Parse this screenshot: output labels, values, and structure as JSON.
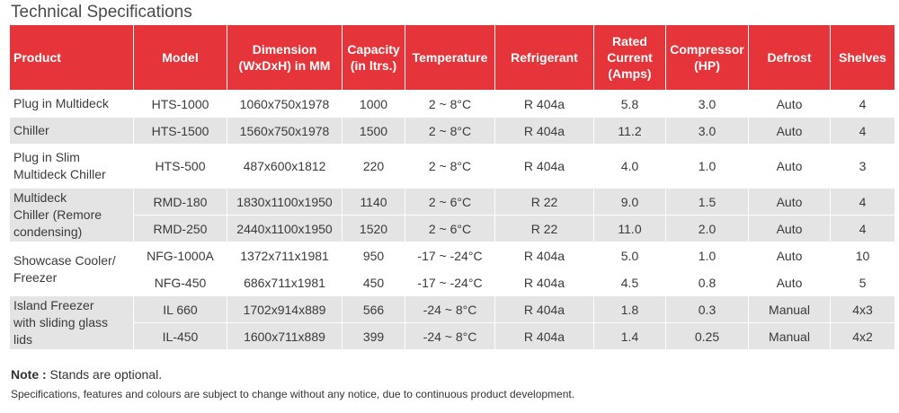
{
  "title": "Technical Specifications",
  "header": {
    "product": "Product",
    "model": "Model",
    "dimension_1": "Dimension",
    "dimension_2": "(WxDxH) in MM",
    "capacity_1": "Capacity",
    "capacity_2": "(in ltrs.)",
    "temperature": "Temperature",
    "refrigerant": "Refrigerant",
    "current_1": "Rated",
    "current_2": "Current",
    "current_3": "(Amps)",
    "compressor_1": "Compressor",
    "compressor_2": "(HP)",
    "defrost": "Defrost",
    "shelves": "Shelves"
  },
  "products": [
    {
      "lines": [
        "Plug in Multideck"
      ]
    },
    {
      "lines": [
        "Chiller"
      ]
    },
    {
      "lines": [
        "Plug in Slim",
        "Multideck Chiller"
      ]
    },
    {
      "lines": [
        "Multideck",
        "Chiller (Remore",
        "condensing)"
      ]
    },
    {
      "lines": [
        "Showcase Cooler/",
        "Freezer"
      ]
    },
    {
      "lines": [
        "Island Freezer",
        "with sliding glass",
        "lids"
      ]
    }
  ],
  "rows": [
    {
      "model": "HTS-1000",
      "dimension": "1060x750x1978",
      "capacity": "1000",
      "temperature": "2 ~ 8°C",
      "refrigerant": "R 404a",
      "current": "5.8",
      "compressor": "3.0",
      "defrost": "Auto",
      "shelves": "4"
    },
    {
      "model": "HTS-1500",
      "dimension": "1560x750x1978",
      "capacity": "1500",
      "temperature": "2 ~ 8°C",
      "refrigerant": "R 404a",
      "current": "11.2",
      "compressor": "3.0",
      "defrost": "Auto",
      "shelves": "4"
    },
    {
      "model": "HTS-500",
      "dimension": "487x600x1812",
      "capacity": "220",
      "temperature": "2 ~ 8°C",
      "refrigerant": "R 404a",
      "current": "4.0",
      "compressor": "1.0",
      "defrost": "Auto",
      "shelves": "3"
    },
    {
      "model": "RMD-180",
      "dimension": "1830x1100x1950",
      "capacity": "1140",
      "temperature": "2 ~ 6°C",
      "refrigerant": "R 22",
      "current": "9.0",
      "compressor": "1.5",
      "defrost": "Auto",
      "shelves": "4"
    },
    {
      "model": "RMD-250",
      "dimension": "2440x1100x1950",
      "capacity": "1520",
      "temperature": "2 ~ 6°C",
      "refrigerant": "R 22",
      "current": "11.0",
      "compressor": "2.0",
      "defrost": "Auto",
      "shelves": "4"
    },
    {
      "model": "NFG-1000A",
      "dimension": "1372x711x1981",
      "capacity": "950",
      "temperature": "-17 ~ -24°C",
      "refrigerant": "R 404a",
      "current": "5.0",
      "compressor": "1.0",
      "defrost": "Auto",
      "shelves": "10"
    },
    {
      "model": "NFG-450",
      "dimension": "686x711x1981",
      "capacity": "450",
      "temperature": "-17 ~ -24°C",
      "refrigerant": "R 404a",
      "current": "4.5",
      "compressor": "0.8",
      "defrost": "Auto",
      "shelves": "5"
    },
    {
      "model": "IL 660",
      "dimension": "1702x914x889",
      "capacity": "566",
      "temperature": "-24 ~ 8°C",
      "refrigerant": "R 404a",
      "current": "1.8",
      "compressor": "0.3",
      "defrost": "Manual",
      "shelves": "4x3"
    },
    {
      "model": "IL-450",
      "dimension": "1600x711x889",
      "capacity": "399",
      "temperature": "-24 ~ 8°C",
      "refrigerant": "R 404a",
      "current": "1.4",
      "compressor": "0.25",
      "defrost": "Manual",
      "shelves": "4x2"
    }
  ],
  "note_label": "Note :",
  "note_text": " Stands are optional.",
  "disclaimer": "Specifications, features and colours are subject to change without any notice, due to continuous product development.",
  "colors": {
    "header_bg": "#e5343a",
    "row_alt_bg": "#e4e4e4"
  }
}
